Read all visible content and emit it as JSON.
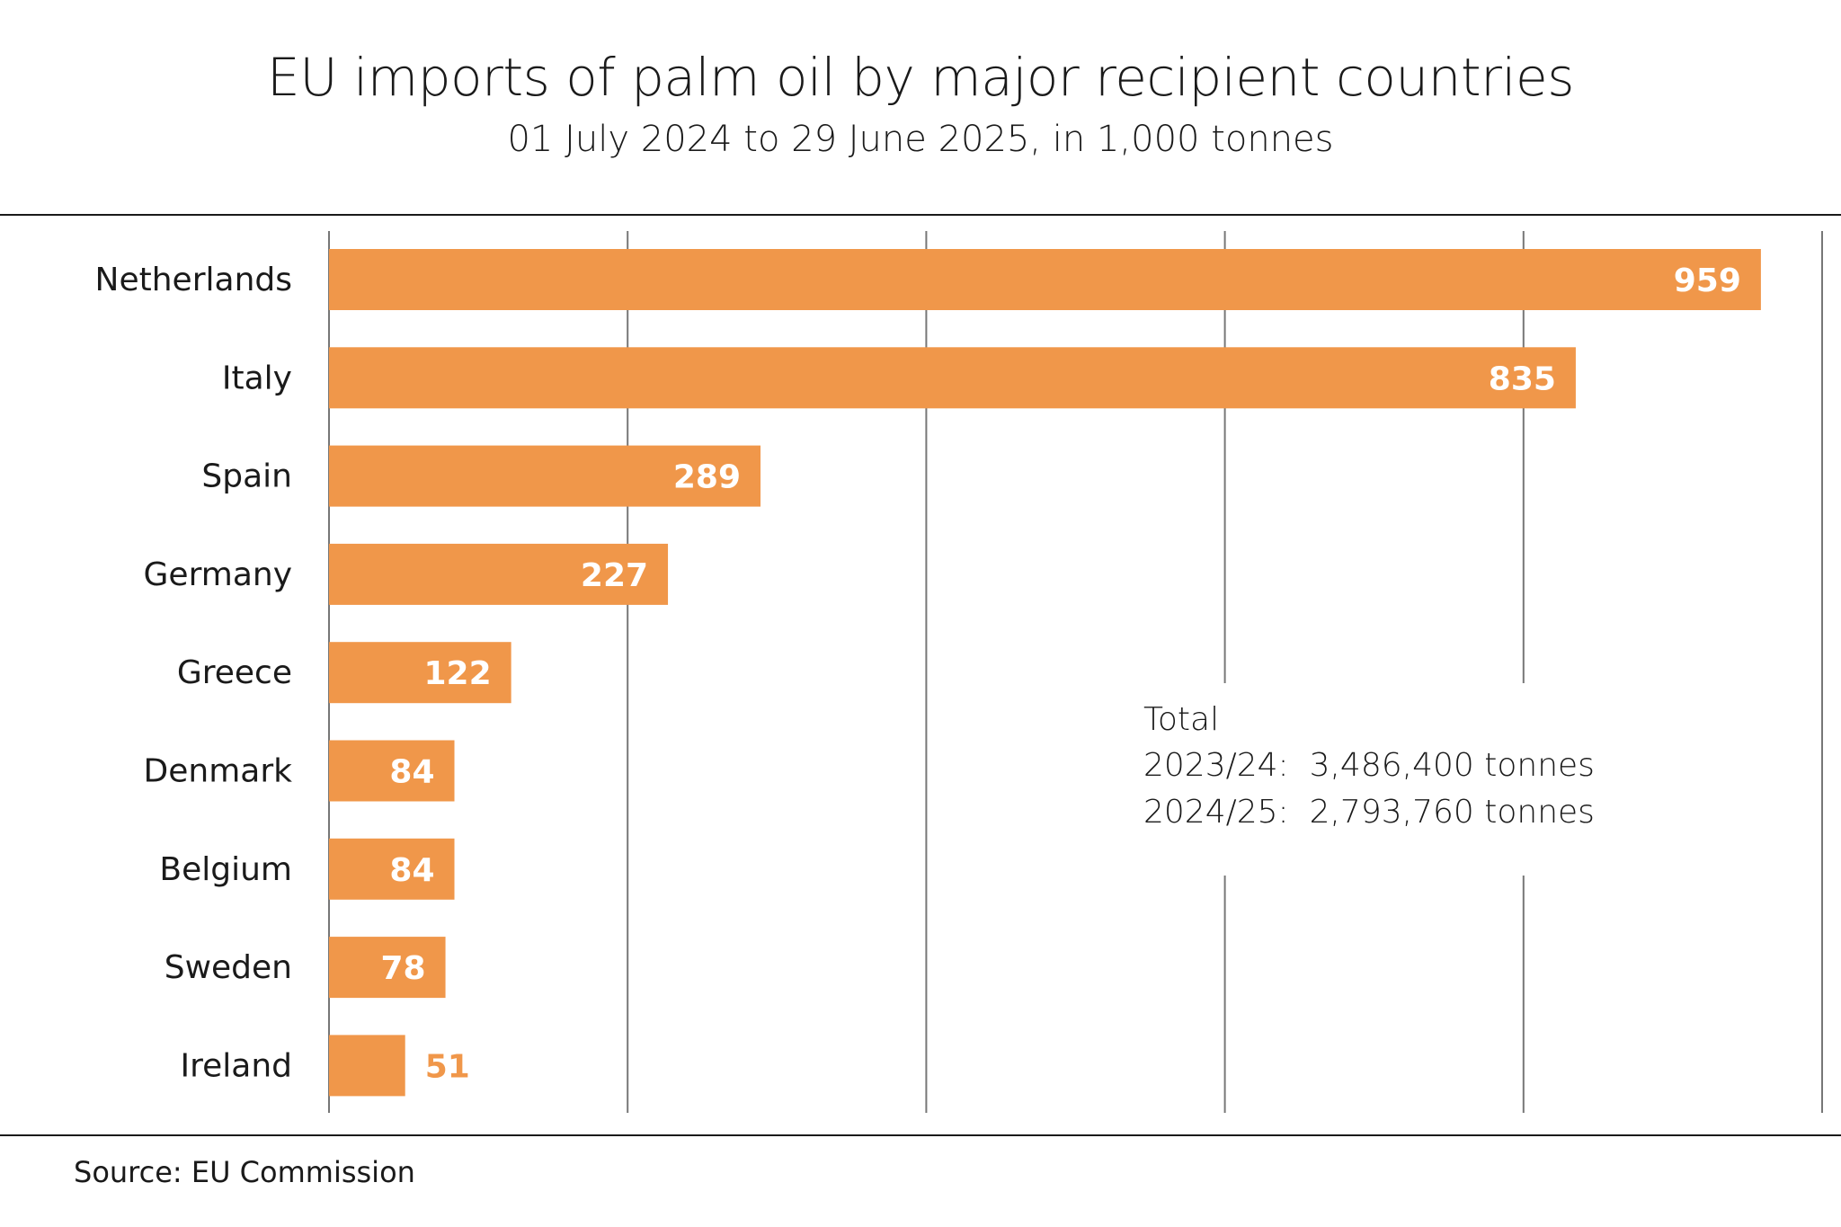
{
  "chart_data": {
    "type": "bar",
    "orientation": "horizontal",
    "title": "EU imports of palm oil by major recipient countries",
    "subtitle": "01 July 2024 to 29 June 2025, in 1,000 tonnes",
    "categories": [
      "Netherlands",
      "Italy",
      "Spain",
      "Germany",
      "Greece",
      "Denmark",
      "Belgium",
      "Sweden",
      "Ireland"
    ],
    "values": [
      959,
      835,
      289,
      227,
      122,
      84,
      84,
      78,
      51
    ],
    "xlim": [
      0,
      1000
    ],
    "gridlines": [
      0,
      200,
      400,
      600,
      800,
      1000
    ],
    "grid": true,
    "bar_color": "#F0974A",
    "label_color": "#FFFFFF",
    "annotation": {
      "heading": "Total",
      "lines": [
        "2023/24:  3,486,400 tonnes",
        "2024/25:  2,793,760 tonnes"
      ]
    },
    "source": "Source: EU Commission"
  }
}
